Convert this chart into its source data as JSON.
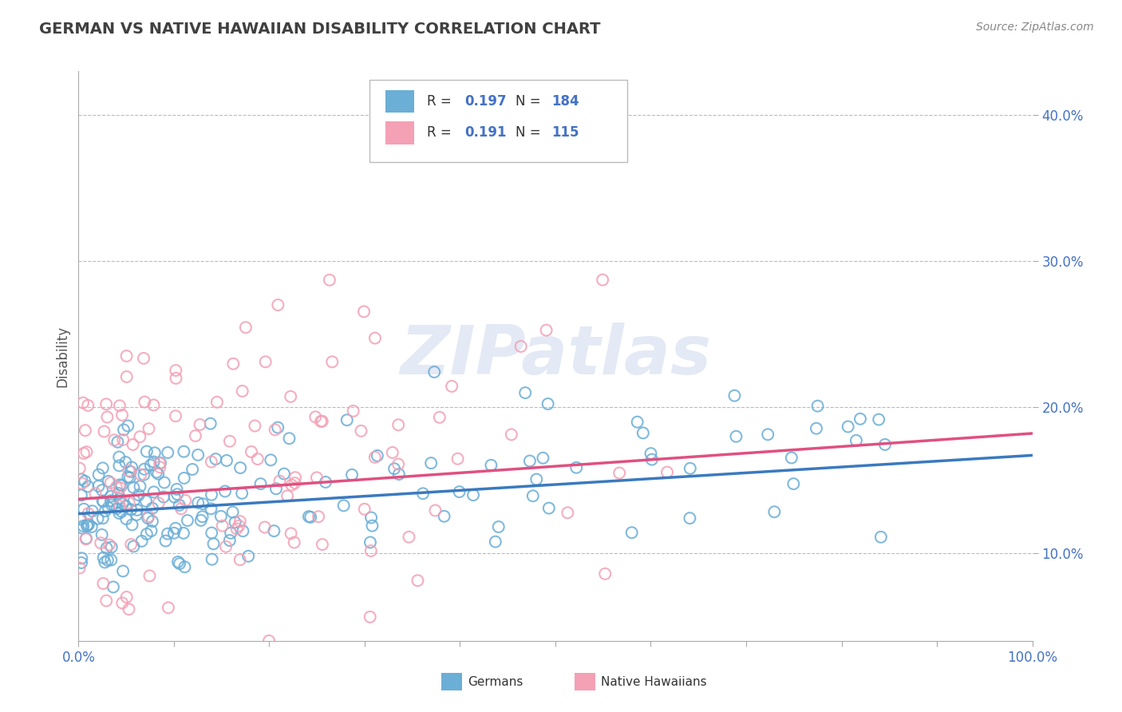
{
  "title": "GERMAN VS NATIVE HAWAIIAN DISABILITY CORRELATION CHART",
  "source_text": "Source: ZipAtlas.com",
  "ylabel": "Disability",
  "xlim": [
    0.0,
    1.0
  ],
  "ylim": [
    0.04,
    0.43
  ],
  "xticks": [
    0.0,
    0.1,
    0.2,
    0.3,
    0.4,
    0.5,
    0.6,
    0.7,
    0.8,
    0.9,
    1.0
  ],
  "yticks": [
    0.1,
    0.2,
    0.3,
    0.4
  ],
  "german_color": "#6baed6",
  "hawaiian_color": "#f4a0b5",
  "german_line_color": "#3a7abf",
  "hawaiian_line_color": "#e05080",
  "R_german": 0.197,
  "N_german": 184,
  "R_hawaiian": 0.191,
  "N_hawaiian": 115,
  "watermark": "ZIPatlas",
  "background_color": "#ffffff",
  "grid_color": "#bbbbbb",
  "title_color": "#404040",
  "label_color": "#4472c4",
  "tick_label_color": "#4472c4"
}
